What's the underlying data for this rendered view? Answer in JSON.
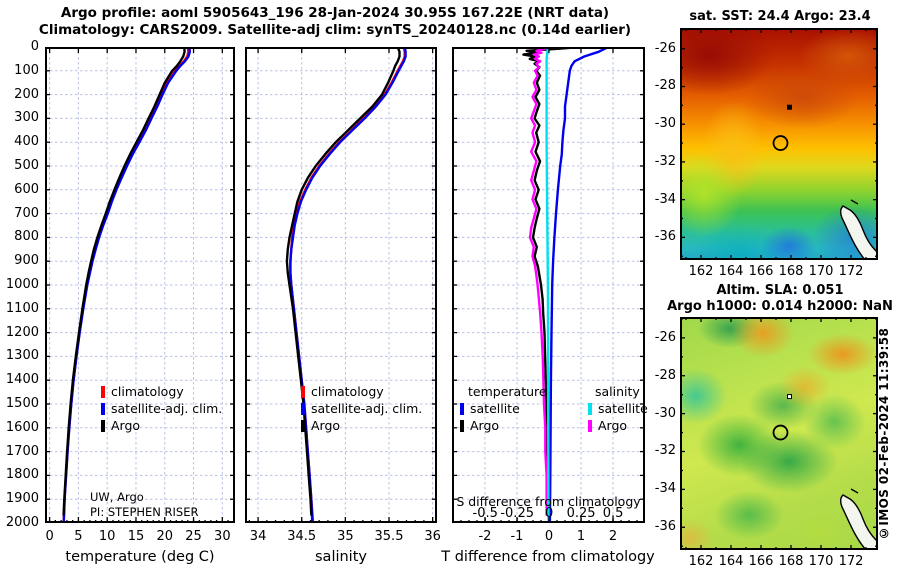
{
  "header": {
    "title_line1": "Argo profile: aoml 5905643_196 28-Jan-2024 30.95S 167.22E (NRT data)",
    "title_line2": "Climatology: CARS2009. Satellite-adj clim: synTS_20240128.nc (0.14d earlier)"
  },
  "watermark": "©IMOS 02-Feb-2024 11:39:58",
  "colors": {
    "climatology": "#ff0000",
    "satellite_clim": "#0000ee",
    "argo": "#000000",
    "satellite_salinity": "#00e0ee",
    "argo_salinity": "#ff00ff",
    "grid": "#b9c0e4"
  },
  "depth_axis": {
    "ticks": [
      0,
      100,
      200,
      300,
      400,
      500,
      600,
      700,
      800,
      900,
      1000,
      1100,
      1200,
      1300,
      1400,
      1500,
      1600,
      1700,
      1800,
      1900,
      2000
    ]
  },
  "chart_data": [
    {
      "type": "line",
      "xlabel": "temperature (deg C)",
      "xlim": [
        -0.8,
        32.2
      ],
      "xticks": [
        0,
        5,
        10,
        15,
        20,
        25,
        30
      ],
      "ylim": [
        0,
        2000
      ],
      "legend": [
        "climatology",
        "satellite-adj. clim.",
        "Argo"
      ],
      "annotation": [
        "UW, Argo",
        "PI: STEPHEN RISER"
      ],
      "series": [
        {
          "name": "climatology",
          "color_key": "climatology",
          "depths": [
            0,
            20,
            40,
            60,
            80,
            100,
            150,
            200,
            250,
            300,
            350,
            400,
            450,
            500,
            550,
            600,
            650,
            700,
            750,
            800,
            850,
            900,
            950,
            1000,
            1100,
            1200,
            1300,
            1400,
            1500,
            1600,
            1700,
            1800,
            1900,
            2000
          ],
          "values": [
            24.0,
            24.1,
            23.9,
            23.3,
            22.5,
            21.8,
            20.4,
            19.4,
            18.5,
            17.5,
            16.5,
            15.4,
            14.3,
            13.3,
            12.4,
            11.5,
            10.7,
            10.0,
            9.25,
            8.55,
            7.95,
            7.4,
            6.95,
            6.5,
            5.8,
            5.2,
            4.65,
            4.15,
            3.75,
            3.4,
            3.1,
            2.85,
            2.6,
            2.45
          ]
        },
        {
          "name": "satellite-adj. clim.",
          "color_key": "satellite_clim",
          "depths": [
            0,
            20,
            40,
            60,
            80,
            100,
            150,
            200,
            250,
            300,
            350,
            400,
            450,
            500,
            550,
            600,
            650,
            700,
            750,
            800,
            850,
            900,
            950,
            1000,
            1100,
            1200,
            1300,
            1400,
            1500,
            1600,
            1700,
            1800,
            1900,
            1990
          ],
          "values": [
            24.3,
            24.35,
            24.1,
            23.5,
            22.7,
            22.0,
            20.6,
            19.6,
            18.7,
            17.7,
            16.7,
            15.6,
            14.45,
            13.45,
            12.5,
            11.6,
            10.8,
            10.1,
            9.3,
            8.6,
            8.0,
            7.45,
            7.0,
            6.55,
            5.85,
            5.22,
            4.67,
            4.17,
            3.77,
            3.42,
            3.12,
            2.86,
            2.61,
            2.46
          ]
        },
        {
          "name": "Argo",
          "color_key": "argo",
          "depths": [
            0,
            20,
            40,
            60,
            80,
            100,
            150,
            200,
            250,
            300,
            350,
            400,
            450,
            500,
            550,
            600,
            650,
            700,
            750,
            800,
            850,
            900,
            950,
            1000,
            1100,
            1200,
            1300,
            1400,
            1500,
            1600,
            1700,
            1800,
            1900,
            1965
          ],
          "values": [
            23.4,
            23.45,
            23.2,
            22.7,
            22.1,
            21.3,
            20.0,
            19.1,
            18.2,
            17.2,
            16.2,
            15.1,
            14.0,
            13.0,
            12.1,
            11.25,
            10.45,
            9.75,
            9.0,
            8.3,
            7.7,
            7.2,
            6.75,
            6.35,
            5.7,
            5.1,
            4.55,
            4.05,
            3.65,
            3.32,
            3.03,
            2.79,
            2.56,
            2.43
          ]
        }
      ]
    },
    {
      "type": "line",
      "xlabel": "salinity",
      "xlim": [
        33.85,
        36.05
      ],
      "xticks": [
        34,
        34.5,
        35,
        35.5,
        36
      ],
      "ylim": [
        0,
        2000
      ],
      "legend": [
        "climatology",
        "satellite-adj. clim.",
        "Argo"
      ],
      "series": [
        {
          "name": "climatology",
          "color_key": "climatology",
          "depths": [
            0,
            20,
            40,
            60,
            80,
            100,
            150,
            200,
            250,
            300,
            350,
            400,
            450,
            500,
            550,
            600,
            650,
            700,
            750,
            800,
            850,
            900,
            950,
            1000,
            1100,
            1200,
            1300,
            1400,
            1500,
            1600,
            1700,
            1800,
            1900,
            2000
          ],
          "values": [
            35.67,
            35.68,
            35.68,
            35.66,
            35.63,
            35.6,
            35.53,
            35.45,
            35.34,
            35.21,
            35.07,
            34.93,
            34.81,
            34.7,
            34.61,
            34.54,
            34.48,
            34.44,
            34.41,
            34.39,
            34.38,
            34.37,
            34.37,
            34.38,
            34.41,
            34.44,
            34.47,
            34.5,
            34.53,
            34.55,
            34.57,
            34.59,
            34.61,
            34.63
          ]
        },
        {
          "name": "satellite-adj. clim.",
          "color_key": "satellite_clim",
          "depths": [
            0,
            20,
            40,
            60,
            80,
            100,
            150,
            200,
            250,
            300,
            350,
            400,
            450,
            500,
            550,
            600,
            650,
            700,
            750,
            800,
            850,
            900,
            950,
            1000,
            1100,
            1200,
            1300,
            1400,
            1500,
            1600,
            1700,
            1800,
            1900,
            1990
          ],
          "values": [
            35.68,
            35.69,
            35.69,
            35.67,
            35.64,
            35.61,
            35.54,
            35.46,
            35.35,
            35.22,
            35.08,
            34.94,
            34.82,
            34.71,
            34.62,
            34.55,
            34.49,
            34.45,
            34.42,
            34.4,
            34.38,
            34.37,
            34.37,
            34.38,
            34.41,
            34.44,
            34.47,
            34.5,
            34.53,
            34.55,
            34.57,
            34.59,
            34.61,
            34.62
          ]
        },
        {
          "name": "Argo",
          "color_key": "argo",
          "depths": [
            0,
            20,
            40,
            60,
            80,
            100,
            150,
            200,
            250,
            300,
            350,
            400,
            450,
            500,
            550,
            600,
            650,
            700,
            750,
            800,
            850,
            900,
            950,
            1000,
            1100,
            1200,
            1300,
            1400,
            1500,
            1600,
            1700,
            1800,
            1900,
            1965
          ],
          "values": [
            35.6,
            35.62,
            35.62,
            35.6,
            35.57,
            35.55,
            35.49,
            35.42,
            35.31,
            35.17,
            35.03,
            34.89,
            34.77,
            34.66,
            34.57,
            34.5,
            34.45,
            34.42,
            34.39,
            34.36,
            34.34,
            34.33,
            34.34,
            34.36,
            34.4,
            34.43,
            34.46,
            34.49,
            34.52,
            34.54,
            34.56,
            34.58,
            34.6,
            34.61
          ]
        }
      ]
    },
    {
      "type": "line",
      "xlabel": "T difference from climatology",
      "xlim": [
        -3.03,
        3.0
      ],
      "xticks": [
        -2,
        -1,
        0,
        1,
        2
      ],
      "ylim": [
        0,
        2000
      ],
      "slim": [
        -0.76,
        0.75
      ],
      "s_ticks": [
        "-0.5",
        "-0.25",
        "0",
        "0.25",
        "0.5"
      ],
      "s_axis_label": "S difference from climatology",
      "legend_t": {
        "header": "temperature",
        "items": [
          "satellite",
          "Argo"
        ]
      },
      "legend_s": {
        "header": "salinity",
        "items": [
          "satellite",
          "Argo"
        ]
      },
      "series": [
        {
          "name": "T satellite",
          "color_key": "satellite_clim",
          "axis": "x",
          "depths": [
            0,
            20,
            40,
            60,
            80,
            100,
            150,
            200,
            250,
            300,
            350,
            400,
            450,
            500,
            600,
            700,
            800,
            900,
            1000,
            1200,
            1400,
            1600,
            1800,
            1990
          ],
          "values": [
            1.85,
            1.55,
            1.1,
            0.8,
            0.7,
            0.65,
            0.6,
            0.55,
            0.5,
            0.5,
            0.45,
            0.42,
            0.4,
            0.35,
            0.28,
            0.22,
            0.17,
            0.13,
            0.1,
            0.08,
            0.06,
            0.05,
            0.04,
            0.03
          ]
        },
        {
          "name": "T Argo",
          "color_key": "argo",
          "axis": "x",
          "depths": [
            0,
            8,
            16,
            24,
            32,
            40,
            50,
            60,
            70,
            85,
            100,
            120,
            150,
            180,
            210,
            240,
            270,
            300,
            330,
            360,
            400,
            440,
            480,
            520,
            560,
            600,
            640,
            680,
            720,
            760,
            800,
            840,
            880,
            920,
            960,
            1000,
            1060,
            1120,
            1200,
            1300,
            1400,
            1500,
            1600,
            1700,
            1800,
            1900,
            1965
          ],
          "values": [
            1.0,
            0.2,
            -0.7,
            -0.35,
            -0.8,
            -0.45,
            -0.6,
            -0.3,
            -0.45,
            -0.3,
            -0.4,
            -0.28,
            -0.38,
            -0.3,
            -0.42,
            -0.3,
            -0.38,
            -0.45,
            -0.3,
            -0.4,
            -0.32,
            -0.42,
            -0.28,
            -0.38,
            -0.45,
            -0.32,
            -0.42,
            -0.3,
            -0.38,
            -0.45,
            -0.5,
            -0.38,
            -0.45,
            -0.35,
            -0.3,
            -0.25,
            -0.2,
            -0.18,
            -0.14,
            -0.12,
            -0.1,
            -0.08,
            -0.07,
            -0.06,
            -0.05,
            -0.05,
            -0.04
          ]
        },
        {
          "name": "S Argo",
          "color_key": "argo_salinity",
          "axis": "s",
          "depths": [
            0,
            8,
            16,
            24,
            32,
            40,
            50,
            60,
            70,
            85,
            100,
            120,
            150,
            180,
            210,
            240,
            270,
            300,
            330,
            360,
            400,
            440,
            480,
            520,
            560,
            600,
            640,
            680,
            720,
            760,
            800,
            840,
            880,
            920,
            960,
            1000,
            1060,
            1120,
            1200,
            1300,
            1400,
            1500,
            1600,
            1700,
            1800,
            1900,
            1965
          ],
          "values": [
            0.02,
            -0.04,
            -0.1,
            -0.06,
            -0.12,
            -0.08,
            -0.11,
            -0.07,
            -0.1,
            -0.08,
            -0.11,
            -0.09,
            -0.12,
            -0.1,
            -0.13,
            -0.1,
            -0.12,
            -0.14,
            -0.11,
            -0.13,
            -0.11,
            -0.14,
            -0.1,
            -0.12,
            -0.14,
            -0.11,
            -0.13,
            -0.1,
            -0.12,
            -0.14,
            -0.15,
            -0.12,
            -0.13,
            -0.11,
            -0.1,
            -0.09,
            -0.08,
            -0.07,
            -0.06,
            -0.05,
            -0.045,
            -0.04,
            -0.03,
            -0.03,
            -0.02,
            -0.02,
            -0.02
          ]
        },
        {
          "name": "S satellite",
          "color_key": "satellite_salinity",
          "axis": "s",
          "depths": [
            0,
            50,
            100,
            200,
            400,
            700,
            1000,
            1400,
            2000
          ],
          "values": [
            -0.01,
            -0.02,
            -0.02,
            -0.02,
            -0.02,
            -0.015,
            -0.01,
            -0.008,
            -0.005
          ]
        }
      ]
    },
    {
      "type": "heatmap",
      "title": "sat. SST: 24.4 Argo: 23.4",
      "xlim": [
        160.6,
        173.8
      ],
      "ylim": [
        -24.9,
        -37.2
      ],
      "xticks": [
        162,
        164,
        166,
        168,
        170,
        172
      ],
      "yticks": [
        -26,
        -28,
        -30,
        -32,
        -34,
        -36
      ],
      "marker": {
        "lon": 167.3,
        "lat": -31.0
      },
      "dot": {
        "lon": 167.9,
        "lat": -29.1
      },
      "summary": {
        "sat_sst": "24.4",
        "argo_sst": "23.4"
      }
    },
    {
      "type": "heatmap",
      "title": "Altim. SLA: 0.051",
      "subtitle": "Argo h1000: 0.014 h2000: NaN",
      "xlim": [
        160.6,
        173.8
      ],
      "ylim": [
        -24.9,
        -37.2
      ],
      "xticks": [
        162,
        164,
        166,
        168,
        170,
        172
      ],
      "yticks": [
        -26,
        -28,
        -30,
        -32,
        -34,
        -36
      ],
      "marker": {
        "lon": 167.3,
        "lat": -31.0
      },
      "dot": {
        "lon": 167.9,
        "lat": -29.1
      },
      "summary": {
        "sla": "0.051",
        "argo_h1000": "0.014",
        "argo_h2000": "NaN"
      }
    }
  ]
}
